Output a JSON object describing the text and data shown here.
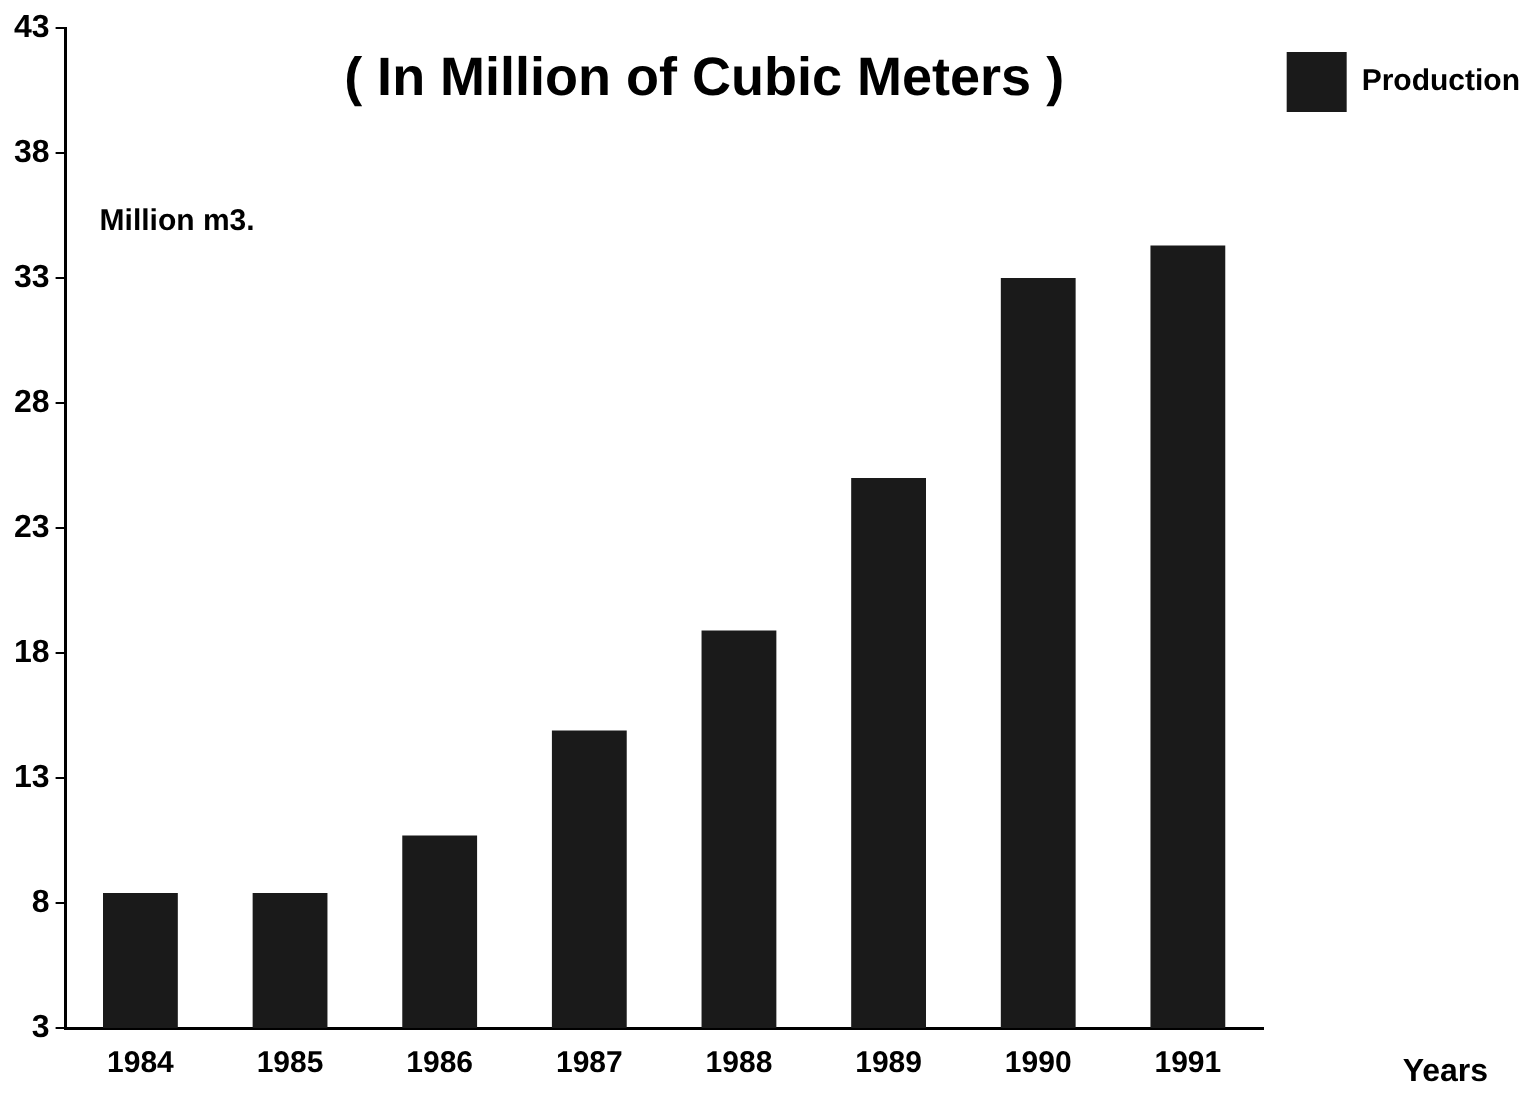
{
  "chart_data": {
    "type": "bar",
    "title": "( In Million of Cubic Meters )",
    "ylabel": "Million m3.",
    "xlabel": "Years",
    "categories": [
      "1984",
      "1985",
      "1986",
      "1987",
      "1988",
      "1989",
      "1990",
      "1991"
    ],
    "series": [
      {
        "name": "Production",
        "color": "#1a1a1a",
        "values": [
          8.4,
          8.4,
          10.7,
          14.9,
          18.9,
          25.0,
          33.0,
          34.3
        ]
      }
    ],
    "ylim": [
      3,
      43
    ],
    "yticks": [
      3,
      8,
      13,
      18,
      23,
      28,
      33,
      38,
      43
    ],
    "grid": false,
    "legend": "right"
  }
}
